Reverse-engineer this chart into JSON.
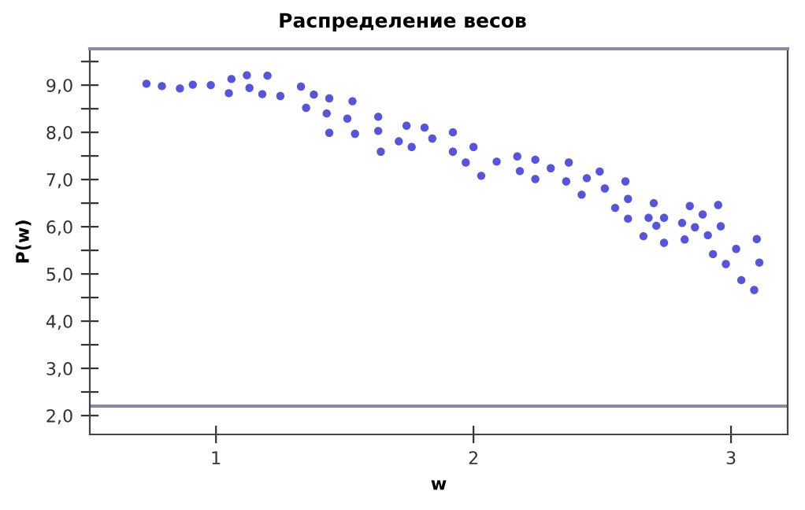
{
  "chart_data": {
    "type": "scatter",
    "title": "Распределение весов",
    "xlabel": "w",
    "ylabel": "P(w)",
    "x": [
      0.73,
      0.79,
      0.86,
      0.91,
      0.98,
      1.06,
      1.05,
      1.12,
      1.13,
      1.2,
      1.18,
      1.25,
      1.33,
      1.38,
      1.35,
      1.44,
      1.43,
      1.44,
      1.53,
      1.51,
      1.54,
      1.63,
      1.63,
      1.64,
      1.74,
      1.71,
      1.81,
      1.76,
      1.84,
      1.92,
      1.92,
      1.97,
      2.0,
      2.03,
      2.09,
      2.17,
      2.18,
      2.24,
      2.24,
      2.3,
      2.37,
      2.36,
      2.42,
      2.44,
      2.49,
      2.51,
      2.55,
      2.59,
      2.6,
      2.6,
      2.66,
      2.68,
      2.7,
      2.71,
      2.74,
      2.74,
      2.81,
      2.82,
      2.84,
      2.86,
      2.89,
      2.91,
      2.93,
      2.95,
      2.96,
      2.98,
      3.02,
      3.04,
      3.09,
      3.1,
      3.11
    ],
    "values": [
      9.03,
      8.98,
      8.93,
      9.01,
      9.0,
      9.13,
      8.83,
      9.21,
      8.94,
      9.2,
      8.81,
      8.77,
      8.97,
      8.8,
      8.52,
      8.72,
      8.4,
      7.99,
      8.66,
      8.29,
      7.97,
      8.33,
      8.03,
      7.59,
      8.14,
      7.81,
      8.1,
      7.69,
      7.87,
      8.0,
      7.59,
      7.36,
      7.69,
      7.08,
      7.38,
      7.49,
      7.18,
      7.42,
      7.01,
      7.24,
      7.36,
      6.96,
      6.68,
      7.03,
      7.17,
      6.81,
      6.4,
      6.96,
      6.59,
      6.17,
      5.8,
      6.19,
      6.5,
      6.02,
      6.19,
      5.66,
      6.08,
      5.73,
      6.44,
      5.99,
      6.26,
      5.82,
      5.42,
      6.46,
      6.01,
      5.21,
      5.53,
      4.87,
      4.66,
      5.74,
      5.24
    ],
    "color": "#3636d6",
    "marker": "circle",
    "xlim": [
      0.51,
      3.22
    ],
    "ylim": [
      1.6,
      9.77
    ],
    "xticks": [
      1,
      2,
      3
    ],
    "yticks": [
      {
        "value": 2,
        "label": "2,0"
      },
      {
        "value": 2.5,
        "label": null
      },
      {
        "value": 3,
        "label": "3,0"
      },
      {
        "value": 3.5,
        "label": null
      },
      {
        "value": 4,
        "label": "4,0"
      },
      {
        "value": 4.5,
        "label": null
      },
      {
        "value": 5,
        "label": "5,0"
      },
      {
        "value": 5.5,
        "label": null
      },
      {
        "value": 6,
        "label": "6,0"
      },
      {
        "value": 6.5,
        "label": null
      },
      {
        "value": 7,
        "label": "7,0"
      },
      {
        "value": 7.5,
        "label": null
      },
      {
        "value": 8,
        "label": "8,0"
      },
      {
        "value": 8.5,
        "label": null
      },
      {
        "value": 9,
        "label": "9,0"
      },
      {
        "value": 9.5,
        "label": null
      }
    ],
    "ref_lines": [
      {
        "axis": "y",
        "value": 2.2,
        "color": "#8a8aa0"
      }
    ],
    "grid": false,
    "legend": false
  }
}
